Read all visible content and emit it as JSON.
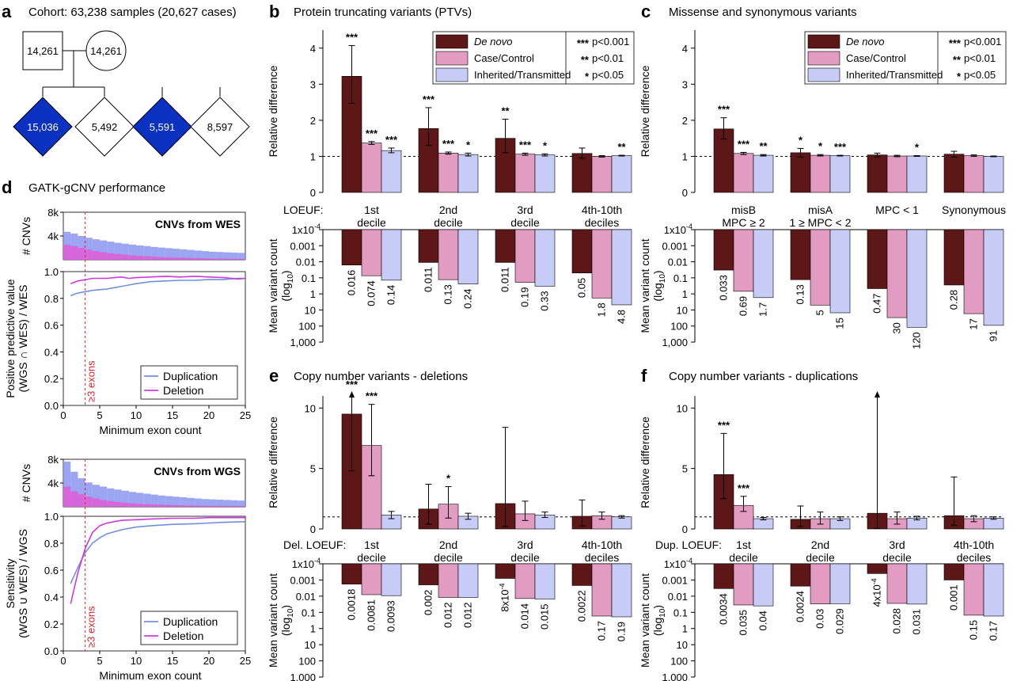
{
  "colors": {
    "de_novo": "#5e1717",
    "case_control": "#e29bc1",
    "inherited": "#c6ccf5",
    "diamond_fill": "#0a31c2",
    "dup_line": "#6f8fe3",
    "del_line": "#cf37e0",
    "hist_wes": "#8a95ef",
    "hist_del": "#e25ad6",
    "threshold": "#d9222a"
  },
  "panel_a": {
    "letter": "a",
    "title": "Cohort: 63,238 samples (20,627 cases)",
    "square": "14,261",
    "circle": "14,261",
    "diamonds": [
      {
        "label": "15,036",
        "filled": true
      },
      {
        "label": "5,492",
        "filled": false
      },
      {
        "label": "5,591",
        "filled": true
      },
      {
        "label": "8,597",
        "filled": false
      }
    ]
  },
  "legend": {
    "series": [
      "De novo",
      "Case/Control",
      "Inherited/Transmitted"
    ],
    "sig": [
      {
        "stars": "***",
        "text": "p<0.001"
      },
      {
        "stars": "**",
        "text": "p<0.01"
      },
      {
        "stars": "*",
        "text": "p<0.05"
      }
    ]
  },
  "common": {
    "rel_ylabel": "Relative difference",
    "count_ylabel_1": "Mean variant count",
    "count_ylabel_2": "(log",
    "count_ylabel_sub": "10",
    "count_ylabel_3": ")",
    "log_ticks": [
      "1x10",
      "0.001",
      "0.01",
      "0.1",
      "1",
      "10",
      "100",
      "1,000"
    ],
    "log_tick_exp": "-4"
  },
  "chart_data": [
    {
      "panel": "b",
      "type": "bar",
      "title": "Protein truncating variants (PTVs)",
      "xlabel": "LOEUF:",
      "categories": [
        [
          "1st",
          "decile"
        ],
        [
          "2nd",
          "decile"
        ],
        [
          "3rd",
          "decile"
        ],
        [
          "4th-10th",
          "deciles"
        ]
      ],
      "ylim": [
        0,
        4.5
      ],
      "yticks": [
        0,
        1,
        2,
        3,
        4
      ],
      "reference_line": 1,
      "series": [
        {
          "name": "De novo",
          "values": [
            3.22,
            1.77,
            1.5,
            1.08
          ],
          "err_low": [
            2.47,
            1.3,
            1.1,
            0.95
          ],
          "err_high": [
            4.07,
            2.35,
            2.03,
            1.23
          ],
          "stars": [
            "***",
            "***",
            "**",
            ""
          ]
        },
        {
          "name": "Case/Control",
          "values": [
            1.37,
            1.09,
            1.06,
            1.0
          ],
          "err_low": [
            1.33,
            1.06,
            1.03,
            0.98
          ],
          "err_high": [
            1.41,
            1.12,
            1.09,
            1.02
          ],
          "stars": [
            "***",
            "***",
            "***",
            ""
          ]
        },
        {
          "name": "Inherited/Transmitted",
          "values": [
            1.16,
            1.05,
            1.04,
            1.02
          ],
          "err_low": [
            1.1,
            1.01,
            1.01,
            1.01
          ],
          "err_high": [
            1.23,
            1.09,
            1.07,
            1.03
          ],
          "stars": [
            "***",
            "*",
            "*",
            "**"
          ]
        }
      ],
      "counts": [
        {
          "values": [
            0.016,
            0.011,
            0.011,
            0.05
          ],
          "labels": [
            "0.016",
            "0.011",
            "0.011",
            "0.05"
          ]
        },
        {
          "values": [
            0.074,
            0.13,
            0.19,
            1.8
          ],
          "labels": [
            "0.074",
            "0.13",
            "0.19",
            "1.8"
          ]
        },
        {
          "values": [
            0.14,
            0.24,
            0.33,
            4.8
          ],
          "labels": [
            "0.14",
            "0.24",
            "0.33",
            "4.8"
          ]
        }
      ]
    },
    {
      "panel": "c",
      "type": "bar",
      "title": "Missense and synonymous variants",
      "xlabel": "",
      "categories": [
        [
          "misB",
          "MPC ≥ 2"
        ],
        [
          "misA",
          "1 ≥ MPC < 2"
        ],
        [
          "MPC < 1"
        ],
        [
          "Synonymous"
        ]
      ],
      "ylim": [
        0,
        4.5
      ],
      "yticks": [
        0,
        1,
        2,
        3,
        4
      ],
      "reference_line": 1,
      "series": [
        {
          "name": "De novo",
          "values": [
            1.76,
            1.1,
            1.04,
            1.06
          ],
          "err_low": [
            1.48,
            0.98,
            0.99,
            0.98
          ],
          "err_high": [
            2.07,
            1.22,
            1.09,
            1.14
          ],
          "stars": [
            "***",
            "*",
            "",
            ""
          ]
        },
        {
          "name": "Case/Control",
          "values": [
            1.08,
            1.03,
            1.01,
            1.02
          ],
          "err_low": [
            1.05,
            1.01,
            0.99,
            1.0
          ],
          "err_high": [
            1.11,
            1.05,
            1.03,
            1.04
          ],
          "stars": [
            "***",
            "*",
            "",
            ""
          ]
        },
        {
          "name": "Inherited/Transmitted",
          "values": [
            1.03,
            1.02,
            1.01,
            1.0
          ],
          "err_low": [
            1.01,
            1.01,
            1.0,
            0.99
          ],
          "err_high": [
            1.05,
            1.03,
            1.02,
            1.01
          ],
          "stars": [
            "**",
            "***",
            "*",
            ""
          ]
        }
      ],
      "counts": [
        {
          "values": [
            0.033,
            0.13,
            0.47,
            0.28
          ],
          "labels": [
            "0.033",
            "0.13",
            "0.47",
            "0.28"
          ]
        },
        {
          "values": [
            0.69,
            5,
            30,
            17
          ],
          "labels": [
            "0.69",
            "5",
            "30",
            "17"
          ]
        },
        {
          "values": [
            1.7,
            15,
            120,
            91
          ],
          "labels": [
            "1.7",
            "15",
            "120",
            "91"
          ]
        }
      ]
    },
    {
      "panel": "e",
      "type": "bar",
      "title": "Copy number variants - deletions",
      "xlabel": "Del. LOEUF:",
      "categories": [
        [
          "1st",
          "decile"
        ],
        [
          "2nd",
          "decile"
        ],
        [
          "3rd",
          "decile"
        ],
        [
          "4th-10th",
          "deciles"
        ]
      ],
      "ylim": [
        0,
        11
      ],
      "yticks": [
        0,
        5,
        10
      ],
      "reference_line": 1,
      "series": [
        {
          "name": "De novo",
          "values": [
            9.5,
            1.65,
            2.1,
            1.05
          ],
          "err_low": [
            4.8,
            0.4,
            0.2,
            0.25
          ],
          "err_high": [
            11,
            3.7,
            8.4,
            2.4
          ],
          "stars": [
            "***",
            "",
            "",
            ""
          ],
          "arrow": [
            true,
            false,
            false,
            false
          ]
        },
        {
          "name": "Case/Control",
          "values": [
            6.9,
            2.05,
            1.25,
            1.1
          ],
          "err_low": [
            4.4,
            0.9,
            0.7,
            0.8
          ],
          "err_high": [
            10.3,
            3.5,
            2.3,
            1.4
          ],
          "stars": [
            "***",
            "*",
            "",
            ""
          ]
        },
        {
          "name": "Inherited/Transmitted",
          "values": [
            1.15,
            1.05,
            1.15,
            1.0
          ],
          "err_low": [
            0.85,
            0.8,
            0.95,
            0.9
          ],
          "err_high": [
            1.45,
            1.3,
            1.4,
            1.1
          ],
          "stars": [
            "",
            "",
            "",
            ""
          ]
        }
      ],
      "counts": [
        {
          "values": [
            0.0018,
            0.002,
            0.0008,
            0.0022
          ],
          "labels": [
            "0.0018",
            "0.002",
            "8x10",
            "0.0022"
          ],
          "label_exp": [
            "",
            "",
            "-4",
            ""
          ]
        },
        {
          "values": [
            0.0081,
            0.012,
            0.014,
            0.17
          ],
          "labels": [
            "0.0081",
            "0.012",
            "0.014",
            "0.17"
          ]
        },
        {
          "values": [
            0.0093,
            0.012,
            0.015,
            0.19
          ],
          "labels": [
            "0.0093",
            "0.012",
            "0.015",
            "0.19"
          ]
        }
      ]
    },
    {
      "panel": "f",
      "type": "bar",
      "title": "Copy number variants - duplications",
      "xlabel": "Dup. LOEUF:",
      "categories": [
        [
          "1st",
          "decile"
        ],
        [
          "2nd",
          "decile"
        ],
        [
          "3rd",
          "decile"
        ],
        [
          "4th-10th",
          "deciles"
        ]
      ],
      "ylim": [
        0,
        11
      ],
      "yticks": [
        0,
        5,
        10
      ],
      "reference_line": 1,
      "series": [
        {
          "name": "De novo",
          "values": [
            4.5,
            0.8,
            1.3,
            1.1
          ],
          "err_low": [
            2.5,
            0.2,
            0.05,
            0.3
          ],
          "err_high": [
            7.9,
            1.9,
            11,
            4.3
          ],
          "stars": [
            "***",
            "",
            "",
            ""
          ],
          "arrow": [
            false,
            false,
            true,
            false
          ]
        },
        {
          "name": "Case/Control",
          "values": [
            1.95,
            0.85,
            0.85,
            0.85
          ],
          "err_low": [
            1.45,
            0.4,
            0.4,
            0.6
          ],
          "err_high": [
            2.7,
            1.4,
            1.4,
            1.1
          ],
          "stars": [
            "***",
            "",
            "",
            ""
          ]
        },
        {
          "name": "Inherited/Transmitted",
          "values": [
            0.85,
            0.85,
            0.9,
            0.9
          ],
          "err_low": [
            0.75,
            0.7,
            0.75,
            0.8
          ],
          "err_high": [
            0.95,
            1.0,
            1.05,
            1.0
          ],
          "stars": [
            "",
            "",
            "",
            ""
          ]
        }
      ],
      "counts": [
        {
          "values": [
            0.0034,
            0.0024,
            0.0004,
            0.001
          ],
          "labels": [
            "0.0034",
            "0.0024",
            "4x10",
            "0.001"
          ],
          "label_exp": [
            "",
            "",
            "-4",
            ""
          ]
        },
        {
          "values": [
            0.035,
            0.03,
            0.028,
            0.15
          ],
          "labels": [
            "0.035",
            "0.03",
            "0.028",
            "0.15"
          ]
        },
        {
          "values": [
            0.04,
            0.029,
            0.031,
            0.17
          ],
          "labels": [
            "0.04",
            "0.029",
            "0.031",
            "0.17"
          ]
        }
      ]
    },
    {
      "panel": "d",
      "type": "line",
      "title": "GATK-gCNV performance",
      "sub": [
        {
          "hist_title": "CNVs from WES",
          "hist_ylabel": "# CNVs",
          "hist_yticks": [
            "8k",
            "4k"
          ],
          "hist_total": [
            4700,
            4400,
            4000,
            3700,
            3450,
            3250,
            3050,
            2850,
            2700,
            2550,
            2400,
            2300,
            2150,
            2050,
            1950,
            1850,
            1750,
            1650,
            1550,
            1450,
            1350,
            1300,
            1250,
            1200,
            1150
          ],
          "hist_del": [
            2500,
            2300,
            2000,
            1700,
            1450,
            1250,
            1100,
            950,
            850,
            750,
            650,
            580,
            520,
            460,
            410,
            370,
            330,
            300,
            270,
            240,
            220,
            200,
            180,
            160,
            150
          ],
          "ylabel_lines": [
            "Positive predictive value",
            "(WGS ∩ WES) / WES"
          ],
          "ylim": [
            0,
            1
          ],
          "yticks": [
            "0.0",
            "0.2",
            "0.4",
            "0.6",
            "0.8",
            "1.0"
          ],
          "xlabel": "Minimum exon count",
          "xticks": [
            0,
            5,
            10,
            15,
            20,
            25
          ],
          "threshold_x": 3,
          "threshold_label": "≥3 exons",
          "legend": [
            "Duplication",
            "Deletion"
          ],
          "dup": {
            "x": [
              1,
              2,
              3,
              4,
              5,
              6,
              7,
              8,
              9,
              10,
              12,
              14,
              16,
              18,
              20,
              22,
              24,
              25
            ],
            "y": [
              0.82,
              0.84,
              0.85,
              0.86,
              0.865,
              0.87,
              0.88,
              0.89,
              0.9,
              0.91,
              0.925,
              0.93,
              0.935,
              0.935,
              0.94,
              0.94,
              0.95,
              0.95
            ]
          },
          "del": {
            "x": [
              1,
              2,
              3,
              4,
              5,
              6,
              7,
              8,
              9,
              10,
              12,
              14,
              16,
              18,
              20,
              22,
              24,
              25
            ],
            "y": [
              0.91,
              0.93,
              0.94,
              0.95,
              0.95,
              0.95,
              0.955,
              0.96,
              0.95,
              0.955,
              0.96,
              0.965,
              0.96,
              0.965,
              0.96,
              0.955,
              0.945,
              0.95
            ]
          }
        },
        {
          "hist_title": "CNVs from WGS",
          "hist_ylabel": "# CNVs",
          "hist_yticks": [
            "8k",
            "4k"
          ],
          "hist_total": [
            7600,
            5900,
            4800,
            4100,
            3700,
            3400,
            3100,
            2900,
            2700,
            2500,
            2350,
            2200,
            2050,
            1900,
            1800,
            1700,
            1600,
            1500,
            1400,
            1300,
            1250,
            1200,
            1150,
            1100,
            1050
          ],
          "hist_del": [
            3400,
            2600,
            2100,
            1700,
            1400,
            1150,
            950,
            800,
            680,
            580,
            500,
            440,
            390,
            350,
            310,
            280,
            250,
            230,
            210,
            190,
            175,
            160,
            150,
            140,
            130
          ],
          "ylabel_lines": [
            "Sensitivity",
            "(WGS ∪ WES) / WGS"
          ],
          "ylim": [
            0,
            1
          ],
          "yticks": [
            "0.0",
            "0.2",
            "0.4",
            "0.6",
            "0.8",
            "1.0"
          ],
          "xlabel": "Minimum exon count",
          "xticks": [
            0,
            5,
            10,
            15,
            20,
            25
          ],
          "threshold_x": 3,
          "threshold_label": "≥3 exons",
          "legend": [
            "Duplication",
            "Deletion"
          ],
          "dup": {
            "x": [
              1,
              2,
              3,
              4,
              5,
              6,
              8,
              10,
              12,
              15,
              18,
              20,
              22,
              25
            ],
            "y": [
              0.5,
              0.62,
              0.73,
              0.8,
              0.84,
              0.87,
              0.9,
              0.92,
              0.93,
              0.94,
              0.945,
              0.95,
              0.955,
              0.96
            ]
          },
          "del": {
            "x": [
              1,
              2,
              3,
              4,
              5,
              6,
              8,
              10,
              12,
              15,
              18,
              20,
              22,
              25
            ],
            "y": [
              0.35,
              0.58,
              0.76,
              0.88,
              0.93,
              0.95,
              0.97,
              0.975,
              0.98,
              0.985,
              0.985,
              0.99,
              0.99,
              0.99
            ]
          }
        }
      ]
    }
  ]
}
